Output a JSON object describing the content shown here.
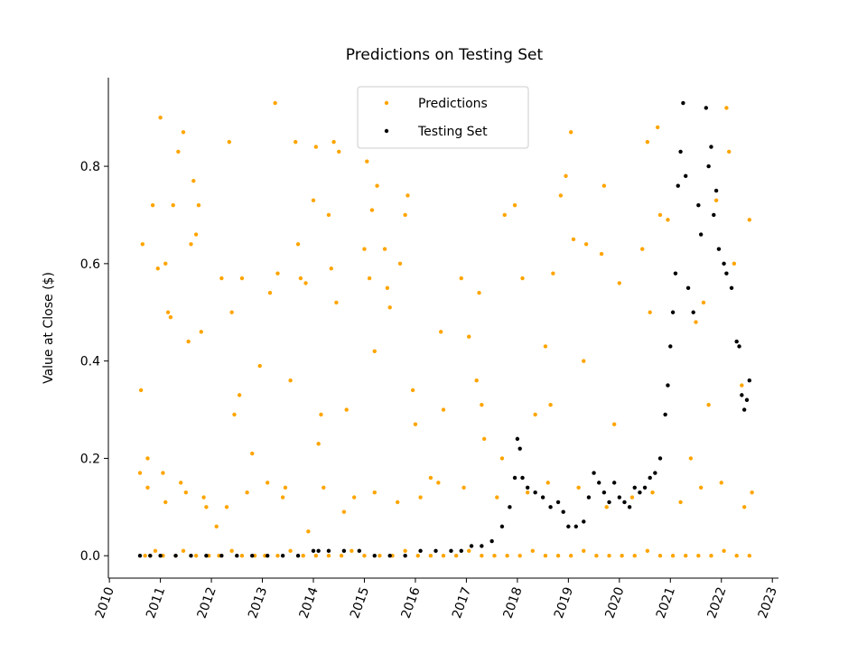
{
  "chart_data": {
    "type": "scatter",
    "title": "Predictions on Testing Set",
    "y_label": "Value at Close ($)",
    "xlim": [
      2009.98,
      2023.12
    ],
    "xticks": [
      2010,
      2011,
      2012,
      2013,
      2014,
      2015,
      2016,
      2017,
      2018,
      2019,
      2020,
      2021,
      2022,
      2023
    ],
    "ylim": [
      -0.046,
      0.982
    ],
    "yticks": [
      {
        "value": 0,
        "label": "0.0"
      },
      0.2,
      0.4,
      0.6,
      0.8
    ],
    "legend": "upper center",
    "grid": false,
    "series": [
      {
        "name": "Predictions",
        "color": "#ffa500",
        "x": [
          2010.6,
          2010.62,
          2010.65,
          2010.75,
          2010.85,
          2010.95,
          2011.0,
          2011.05,
          2011.1,
          2011.15,
          2011.2,
          2011.25,
          2011.35,
          2011.45,
          2011.55,
          2011.6,
          2011.65,
          2011.7,
          2011.75,
          2011.8,
          2011.5,
          2011.9,
          2012.1,
          2012.2,
          2012.35,
          2012.4,
          2012.45,
          2012.55,
          2012.6,
          2012.8,
          2012.95,
          2013.15,
          2013.25,
          2013.3,
          2013.45,
          2013.55,
          2013.65,
          2013.7,
          2013.75,
          2013.85,
          2013.9,
          2014.0,
          2014.05,
          2014.1,
          2014.15,
          2014.3,
          2014.35,
          2014.4,
          2014.45,
          2014.5,
          2014.65,
          2014.8,
          2015.0,
          2015.05,
          2015.1,
          2015.15,
          2015.2,
          2015.25,
          2015.4,
          2015.45,
          2015.5,
          2015.7,
          2015.8,
          2015.85,
          2015.95,
          2016.0,
          2016.3,
          2016.5,
          2016.55,
          2016.9,
          2017.05,
          2017.2,
          2017.25,
          2017.3,
          2017.35,
          2017.7,
          2017.75,
          2017.95,
          2018.1,
          2018.35,
          2018.55,
          2018.65,
          2018.7,
          2018.85,
          2018.95,
          2019.05,
          2019.1,
          2019.3,
          2019.35,
          2019.65,
          2019.7,
          2019.9,
          2020.0,
          2020.45,
          2020.55,
          2020.6,
          2020.75,
          2020.8,
          2020.95,
          2021.4,
          2021.5,
          2021.65,
          2021.75,
          2021.9,
          2022.1,
          2022.15,
          2022.25,
          2022.4,
          2022.55,
          2022.6,
          2010.7,
          2010.8,
          2010.9,
          2011.05,
          2011.3,
          2011.45,
          2011.7,
          2011.95,
          2012.15,
          2012.4,
          2012.6,
          2012.85,
          2013.05,
          2013.3,
          2013.55,
          2013.8,
          2014.05,
          2014.3,
          2014.55,
          2014.75,
          2015.0,
          2015.3,
          2015.55,
          2015.8,
          2016.05,
          2016.3,
          2016.55,
          2016.8,
          2017.05,
          2017.3,
          2017.55,
          2017.8,
          2018.05,
          2018.3,
          2018.55,
          2018.8,
          2019.05,
          2019.3,
          2019.55,
          2019.8,
          2020.05,
          2020.3,
          2020.55,
          2020.8,
          2021.05,
          2021.3,
          2021.55,
          2021.8,
          2022.05,
          2022.3,
          2022.55,
          2010.75,
          2011.1,
          2011.4,
          2011.85,
          2012.3,
          2012.7,
          2013.1,
          2013.4,
          2014.2,
          2014.6,
          2015.2,
          2015.65,
          2016.1,
          2016.45,
          2016.95,
          2017.6,
          2018.2,
          2018.6,
          2019.2,
          2019.75,
          2020.25,
          2020.65,
          2021.2,
          2021.6,
          2022.0,
          2022.45
        ],
        "values": [
          0.17,
          0.34,
          0.64,
          0.2,
          0.72,
          0.59,
          0.9,
          0.17,
          0.6,
          0.5,
          0.49,
          0.72,
          0.83,
          0.87,
          0.44,
          0.64,
          0.77,
          0.66,
          0.72,
          0.46,
          0.13,
          0.1,
          0.06,
          0.57,
          0.85,
          0.5,
          0.29,
          0.33,
          0.57,
          0.21,
          0.39,
          0.54,
          0.93,
          0.58,
          0.14,
          0.36,
          0.85,
          0.64,
          0.57,
          0.56,
          0.05,
          0.73,
          0.84,
          0.23,
          0.29,
          0.7,
          0.59,
          0.85,
          0.52,
          0.83,
          0.3,
          0.12,
          0.63,
          0.81,
          0.57,
          0.71,
          0.42,
          0.76,
          0.63,
          0.55,
          0.51,
          0.6,
          0.7,
          0.74,
          0.34,
          0.27,
          0.16,
          0.46,
          0.3,
          0.57,
          0.45,
          0.36,
          0.54,
          0.31,
          0.24,
          0.2,
          0.7,
          0.72,
          0.57,
          0.29,
          0.43,
          0.31,
          0.58,
          0.74,
          0.78,
          0.87,
          0.65,
          0.4,
          0.64,
          0.62,
          0.76,
          0.27,
          0.56,
          0.63,
          0.85,
          0.5,
          0.88,
          0.7,
          0.69,
          0.2,
          0.48,
          0.52,
          0.31,
          0.73,
          0.92,
          0.83,
          0.6,
          0.35,
          0.69,
          0.13,
          0.0,
          0.0,
          0.01,
          0.0,
          0.0,
          0.01,
          0.0,
          0.0,
          0.0,
          0.01,
          0.0,
          0.0,
          0.0,
          0.0,
          0.01,
          0.0,
          0.0,
          0.0,
          0.0,
          0.01,
          0.0,
          0.0,
          0.0,
          0.01,
          0.0,
          0.0,
          0.0,
          0.0,
          0.01,
          0.0,
          0.0,
          0.0,
          0.0,
          0.01,
          0.0,
          0.0,
          0.0,
          0.01,
          0.0,
          0.0,
          0.0,
          0.0,
          0.01,
          0.0,
          0.0,
          0.0,
          0.0,
          0.0,
          0.01,
          0.0,
          0.0,
          0.14,
          0.11,
          0.15,
          0.12,
          0.1,
          0.13,
          0.15,
          0.12,
          0.14,
          0.09,
          0.13,
          0.11,
          0.12,
          0.15,
          0.14,
          0.12,
          0.13,
          0.15,
          0.14,
          0.1,
          0.12,
          0.13,
          0.11,
          0.14,
          0.15,
          0.1
        ]
      },
      {
        "name": "Testing Set",
        "color": "#000000",
        "x": [
          2010.6,
          2010.8,
          2011.0,
          2011.3,
          2011.6,
          2011.9,
          2012.2,
          2012.5,
          2012.8,
          2013.1,
          2013.4,
          2013.7,
          2014.0,
          2014.1,
          2014.3,
          2014.6,
          2014.9,
          2015.2,
          2015.5,
          2015.8,
          2016.1,
          2016.4,
          2016.7,
          2016.9,
          2017.1,
          2017.3,
          2017.5,
          2017.7,
          2017.85,
          2017.95,
          2018.0,
          2018.05,
          2018.1,
          2018.2,
          2018.35,
          2018.5,
          2018.65,
          2018.8,
          2018.9,
          2019.0,
          2019.15,
          2019.3,
          2019.4,
          2019.5,
          2019.6,
          2019.7,
          2019.8,
          2019.9,
          2020.0,
          2020.1,
          2020.2,
          2020.3,
          2020.4,
          2020.5,
          2020.6,
          2020.7,
          2020.8,
          2020.9,
          2020.95,
          2021.0,
          2021.05,
          2021.1,
          2021.15,
          2021.2,
          2021.25,
          2021.3,
          2021.35,
          2021.45,
          2021.55,
          2021.6,
          2021.7,
          2021.75,
          2021.8,
          2021.85,
          2021.9,
          2021.95,
          2022.05,
          2022.1,
          2022.2,
          2022.3,
          2022.35,
          2022.4,
          2022.45,
          2022.5,
          2022.55
        ],
        "values": [
          0.0,
          0.0,
          0.0,
          0.0,
          0.0,
          0.0,
          0.0,
          0.0,
          0.0,
          0.0,
          0.0,
          0.0,
          0.01,
          0.01,
          0.01,
          0.01,
          0.01,
          0.0,
          0.0,
          0.0,
          0.01,
          0.01,
          0.01,
          0.01,
          0.02,
          0.02,
          0.03,
          0.06,
          0.1,
          0.16,
          0.24,
          0.22,
          0.16,
          0.14,
          0.13,
          0.12,
          0.1,
          0.11,
          0.09,
          0.06,
          0.06,
          0.07,
          0.12,
          0.17,
          0.15,
          0.13,
          0.11,
          0.15,
          0.12,
          0.11,
          0.1,
          0.14,
          0.13,
          0.14,
          0.16,
          0.17,
          0.2,
          0.29,
          0.35,
          0.43,
          0.5,
          0.58,
          0.76,
          0.83,
          0.93,
          0.78,
          0.55,
          0.5,
          0.72,
          0.66,
          0.92,
          0.8,
          0.84,
          0.7,
          0.75,
          0.63,
          0.6,
          0.58,
          0.55,
          0.44,
          0.43,
          0.33,
          0.3,
          0.32,
          0.36
        ]
      }
    ]
  }
}
